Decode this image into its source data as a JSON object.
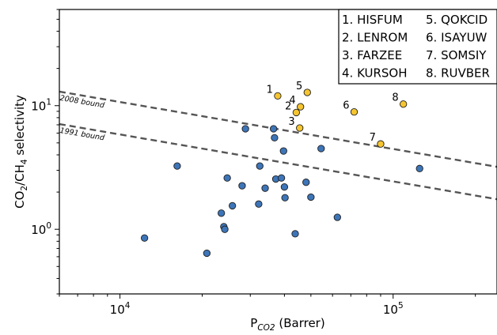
{
  "chart_data": {
    "type": "scatter",
    "title": "",
    "xlabel": "P",
    "xlabel_sub": "CO2",
    "xlabel_unit": "(Barrer)",
    "ylabel": "CO2/CH4 selectivity",
    "x_scale": "log",
    "y_scale": "log",
    "xlim": [
      6000,
      240000
    ],
    "ylim": [
      0.3,
      60
    ],
    "x_ticks": [
      {
        "value": 10000,
        "label": "10^4"
      },
      {
        "value": 100000,
        "label": "10^5"
      }
    ],
    "y_ticks": [
      {
        "value": 1,
        "label": "10^0"
      },
      {
        "value": 10,
        "label": "10^1"
      }
    ],
    "grid": false,
    "legend_position": "top-right",
    "legend": [
      {
        "num": 1,
        "text": "1. HISFUM"
      },
      {
        "num": 2,
        "text": "2. LENROM"
      },
      {
        "num": 3,
        "text": "3. FARZEE"
      },
      {
        "num": 4,
        "text": "4. KURSOH"
      },
      {
        "num": 5,
        "text": "5. QOKCID"
      },
      {
        "num": 6,
        "text": "6. ISAYUW"
      },
      {
        "num": 7,
        "text": "7. SOMSIY"
      },
      {
        "num": 8,
        "text": "8. RUVBER"
      }
    ],
    "bounds": [
      {
        "label": "2008 bound",
        "x": [
          6000,
          240000
        ],
        "y": [
          13.0,
          3.2
        ],
        "color": "#555555"
      },
      {
        "label": "1991 bound",
        "x": [
          6000,
          240000
        ],
        "y": [
          7.1,
          1.75
        ],
        "color": "#555555"
      }
    ],
    "series": [
      {
        "color": "#3d75b8",
        "points": [
          [
            12300,
            0.85
          ],
          [
            16200,
            3.25
          ],
          [
            20800,
            0.64
          ],
          [
            23500,
            1.35
          ],
          [
            24000,
            1.05
          ],
          [
            24200,
            1.0
          ],
          [
            24700,
            2.6
          ],
          [
            25800,
            1.55
          ],
          [
            28000,
            2.25
          ],
          [
            28800,
            6.5
          ],
          [
            32200,
            1.6
          ],
          [
            32500,
            3.25
          ],
          [
            34000,
            2.15
          ],
          [
            36500,
            6.5
          ],
          [
            36800,
            5.5
          ],
          [
            37200,
            2.55
          ],
          [
            39000,
            2.6
          ],
          [
            39700,
            4.3
          ],
          [
            40000,
            2.2
          ],
          [
            40200,
            1.8
          ],
          [
            43800,
            0.92
          ],
          [
            48000,
            2.4
          ],
          [
            50000,
            1.82
          ],
          [
            54500,
            4.5
          ],
          [
            62500,
            1.25
          ],
          [
            125000,
            3.1
          ]
        ]
      },
      {
        "color": "#f5c531",
        "points": [
          {
            "x": 37800,
            "y": 12.0,
            "label": "1"
          },
          {
            "x": 44200,
            "y": 8.8,
            "label": "2"
          },
          {
            "x": 45500,
            "y": 6.6,
            "label": "3"
          },
          {
            "x": 45800,
            "y": 9.8,
            "label": "4"
          },
          {
            "x": 48500,
            "y": 12.8,
            "label": "5"
          },
          {
            "x": 72000,
            "y": 8.9,
            "label": "6"
          },
          {
            "x": 90000,
            "y": 4.9,
            "label": "7"
          },
          {
            "x": 109000,
            "y": 10.3,
            "label": "8"
          }
        ]
      }
    ]
  }
}
